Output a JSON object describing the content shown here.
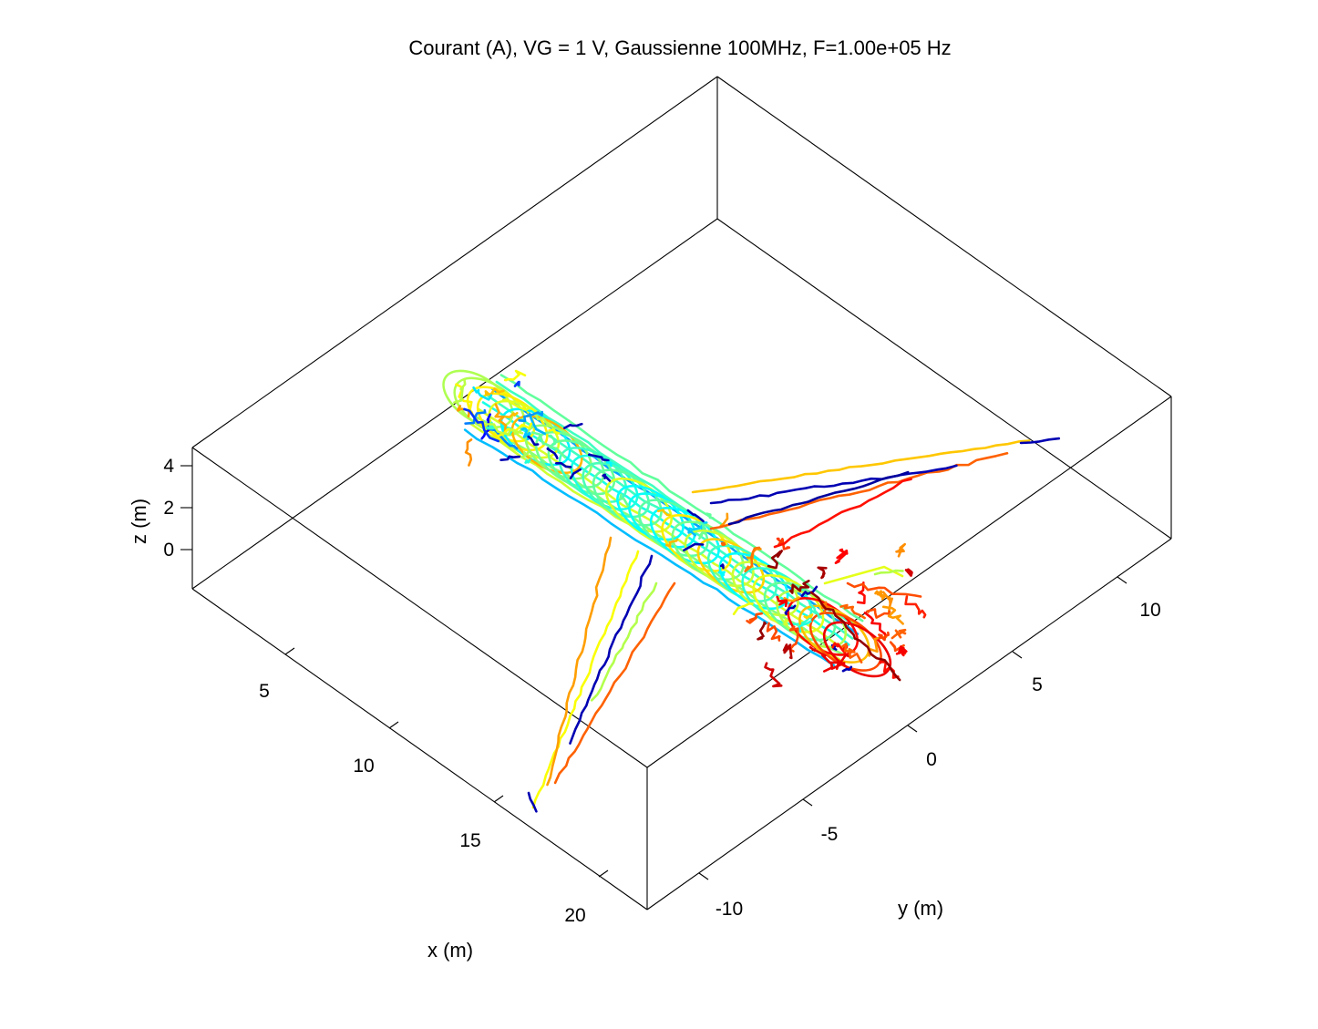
{
  "chart_data": {
    "type": "3d-line",
    "title": "Courant (A), VG = 1 V, Gaussienne 100MHz, F=1.00e+05 Hz",
    "xlabel": "x (m)",
    "ylabel": "y (m)",
    "zlabel": "z (m)",
    "x_ticks": [
      "5",
      "10",
      "15",
      "20"
    ],
    "y_ticks": [
      "-10",
      "-5",
      "0",
      "5",
      "10"
    ],
    "z_ticks": [
      "4",
      "2",
      "0"
    ],
    "grid": false,
    "colormap": "jet",
    "colors": {
      "low": "#00008f",
      "mid_low": "#00bfff",
      "mid": "#7fff7f",
      "mid_high": "#ffbf00",
      "high": "#8f0000"
    },
    "series": [
      {
        "part": "fuselage",
        "level": 0.45
      },
      {
        "part": "left-wing",
        "level": 0.7
      },
      {
        "part": "right-wing",
        "level": 0.62
      },
      {
        "part": "nose",
        "level": 0.4
      },
      {
        "part": "tail",
        "level": 0.92
      }
    ]
  }
}
